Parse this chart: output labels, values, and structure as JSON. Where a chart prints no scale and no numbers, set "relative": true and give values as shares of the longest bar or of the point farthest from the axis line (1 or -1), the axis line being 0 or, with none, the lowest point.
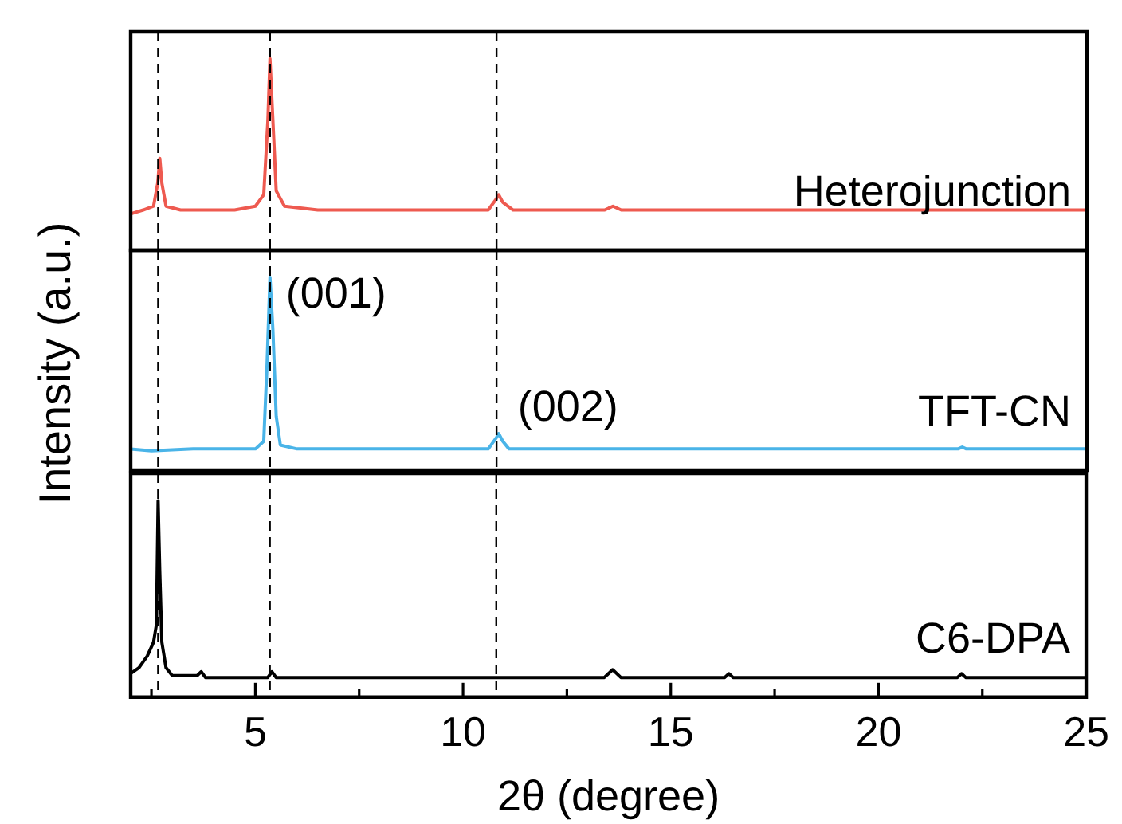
{
  "chart_data": [
    {
      "type": "line",
      "relative": true,
      "xlim": [
        2,
        25
      ],
      "tick_labels": false,
      "legend": false,
      "grid": false,
      "marker": "none",
      "line_style": "solid",
      "series": [
        {
          "name": "Heterojunction",
          "color": "#ee5a50",
          "x": [
            2.0,
            2.3,
            2.55,
            2.65,
            2.7,
            2.75,
            2.85,
            3.2,
            4.5,
            5.0,
            5.2,
            5.3,
            5.35,
            5.42,
            5.5,
            5.7,
            6.5,
            10.6,
            10.8,
            10.85,
            10.95,
            11.2,
            13.4,
            13.6,
            13.8,
            20,
            25
          ],
          "values": [
            0.19,
            0.21,
            0.23,
            0.35,
            0.48,
            0.35,
            0.23,
            0.21,
            0.21,
            0.23,
            0.29,
            0.68,
            1.0,
            0.68,
            0.31,
            0.23,
            0.21,
            0.21,
            0.27,
            0.29,
            0.25,
            0.21,
            0.21,
            0.23,
            0.21,
            0.21,
            0.21
          ]
        }
      ],
      "ref_lines": [
        {
          "axis": "x",
          "value": 2.66,
          "line_style": "dashed",
          "color": "#000000"
        },
        {
          "axis": "x",
          "value": 5.35,
          "line_style": "dashed",
          "color": "#000000"
        },
        {
          "axis": "x",
          "value": 10.8,
          "line_style": "dashed",
          "color": "#000000"
        }
      ]
    },
    {
      "type": "line",
      "relative": true,
      "xlim": [
        2,
        25
      ],
      "tick_labels": false,
      "legend": false,
      "grid": false,
      "marker": "none",
      "line_style": "solid",
      "ylabel": "Intensity (a.u.)",
      "series": [
        {
          "name": "TFT-CN",
          "color": "#4ab4e8",
          "x": [
            2.0,
            2.5,
            3.5,
            5.0,
            5.2,
            5.28,
            5.35,
            5.42,
            5.5,
            5.6,
            6.0,
            10.6,
            10.8,
            10.85,
            10.95,
            11.1,
            21.9,
            22.0,
            22.1,
            25
          ],
          "values": [
            0.11,
            0.1,
            0.11,
            0.11,
            0.15,
            0.55,
            1.0,
            0.73,
            0.28,
            0.13,
            0.11,
            0.11,
            0.17,
            0.19,
            0.15,
            0.11,
            0.11,
            0.12,
            0.11,
            0.11
          ]
        }
      ],
      "annotations": [
        {
          "text": "(001)",
          "x": 5.35,
          "y": 1.0
        },
        {
          "text": "(002)",
          "x": 10.85,
          "y": 0.19
        }
      ],
      "ref_lines": [
        {
          "axis": "x",
          "value": 2.66,
          "line_style": "dashed",
          "color": "#000000"
        },
        {
          "axis": "x",
          "value": 5.35,
          "line_style": "dashed",
          "color": "#000000"
        },
        {
          "axis": "x",
          "value": 10.8,
          "line_style": "dashed",
          "color": "#000000"
        }
      ]
    },
    {
      "type": "line",
      "relative": true,
      "xlim": [
        2,
        25
      ],
      "tick_labels": "x",
      "legend": false,
      "grid": false,
      "marker": "none",
      "line_style": "solid",
      "xlabel": "2θ (degree)",
      "xticks": [
        {
          "value": 2.5,
          "label": null
        },
        5,
        {
          "value": 7.5,
          "label": null
        },
        10,
        {
          "value": 12.5,
          "label": null
        },
        15,
        {
          "value": 17.5,
          "label": null
        },
        20,
        {
          "value": 22.5,
          "label": null
        },
        25
      ],
      "series": [
        {
          "name": "C6-DPA",
          "color": "#000000",
          "x": [
            2.0,
            2.2,
            2.4,
            2.55,
            2.62,
            2.66,
            2.7,
            2.75,
            2.85,
            3.0,
            3.6,
            3.7,
            3.8,
            5.3,
            5.4,
            5.5,
            13.4,
            13.6,
            13.8,
            16.3,
            16.4,
            16.5,
            21.9,
            22.0,
            22.1,
            25
          ],
          "values": [
            0.12,
            0.15,
            0.21,
            0.28,
            0.37,
            1.0,
            0.64,
            0.28,
            0.15,
            0.11,
            0.11,
            0.13,
            0.1,
            0.1,
            0.13,
            0.1,
            0.1,
            0.14,
            0.1,
            0.1,
            0.12,
            0.1,
            0.1,
            0.12,
            0.1,
            0.1
          ]
        }
      ],
      "ref_lines": [
        {
          "axis": "x",
          "value": 2.66,
          "line_style": "dashed",
          "color": "#000000"
        },
        {
          "axis": "x",
          "value": 5.35,
          "line_style": "dashed",
          "color": "#000000"
        },
        {
          "axis": "x",
          "value": 10.8,
          "line_style": "dashed",
          "color": "#000000"
        }
      ]
    }
  ]
}
